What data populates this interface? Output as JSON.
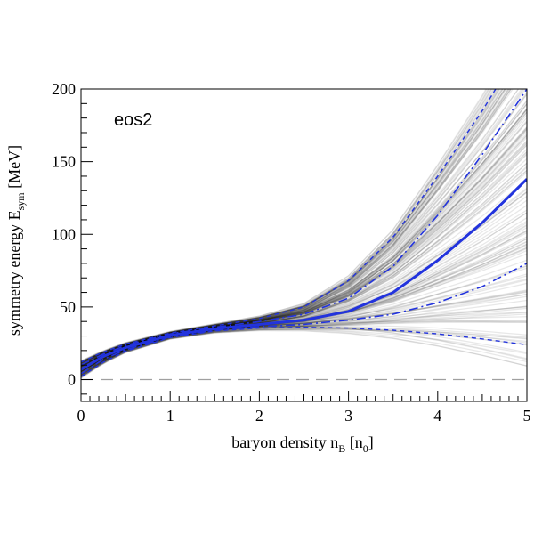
{
  "chart_data": {
    "type": "line",
    "panel_label": "eos2",
    "xlabel": {
      "main": "baryon density n",
      "sub": "B",
      "unit_open": " [n",
      "unit_sub": "0",
      "unit_close": "]"
    },
    "ylabel": {
      "main": "symmetry energy E",
      "sub": "sym",
      "unit": "  [MeV]"
    },
    "xlim": [
      0,
      5
    ],
    "ylim": [
      -15,
      200
    ],
    "x_ticks": [
      "0",
      "1",
      "2",
      "3",
      "4",
      "5"
    ],
    "y_ticks": [
      "0",
      "50",
      "100",
      "150",
      "200"
    ],
    "grid": false,
    "reference_line": {
      "y": 0,
      "style": "dashed",
      "color": "#a0a0a0"
    },
    "band_color": "#000000",
    "series_color": "#2233dd",
    "series": [
      {
        "style": "solid",
        "role": "median",
        "x": [
          0,
          0.25,
          0.5,
          1,
          1.5,
          2,
          2.5,
          3,
          3.5,
          4,
          4.5,
          5
        ],
        "values": [
          7,
          16,
          22,
          30.5,
          35,
          38,
          41,
          47,
          60,
          82,
          108,
          138
        ]
      },
      {
        "style": "dash-dot",
        "role": "upper-2",
        "x": [
          0,
          0.25,
          0.5,
          1,
          1.5,
          2,
          2.5,
          3,
          3.5,
          4,
          4.5,
          5
        ],
        "values": [
          10,
          17.5,
          23.5,
          31.5,
          36,
          40,
          45,
          56,
          78,
          113,
          155,
          200
        ]
      },
      {
        "style": "dash-dot",
        "role": "lower-2",
        "x": [
          0,
          0.25,
          0.5,
          1,
          1.5,
          2,
          2.5,
          3,
          3.5,
          4,
          4.5,
          5
        ],
        "values": [
          4,
          14,
          20.5,
          29.5,
          34,
          36.5,
          38,
          41,
          45,
          53,
          64,
          80
        ]
      },
      {
        "style": "dashed",
        "role": "upper-3",
        "x": [
          0,
          0.25,
          0.5,
          1,
          1.5,
          2,
          2.5,
          3,
          3.5,
          4,
          4.5,
          4.65
        ],
        "values": [
          12,
          19,
          24.5,
          32,
          37,
          42,
          50,
          68,
          98,
          140,
          185,
          200
        ]
      },
      {
        "style": "dashed",
        "role": "lower-3",
        "x": [
          0,
          0.25,
          0.5,
          1,
          1.5,
          2,
          2.5,
          3,
          3.5,
          4,
          4.5,
          5
        ],
        "values": [
          2,
          12,
          19.5,
          29,
          33.5,
          35.5,
          36,
          35.5,
          34,
          31.5,
          28,
          24
        ]
      }
    ]
  }
}
